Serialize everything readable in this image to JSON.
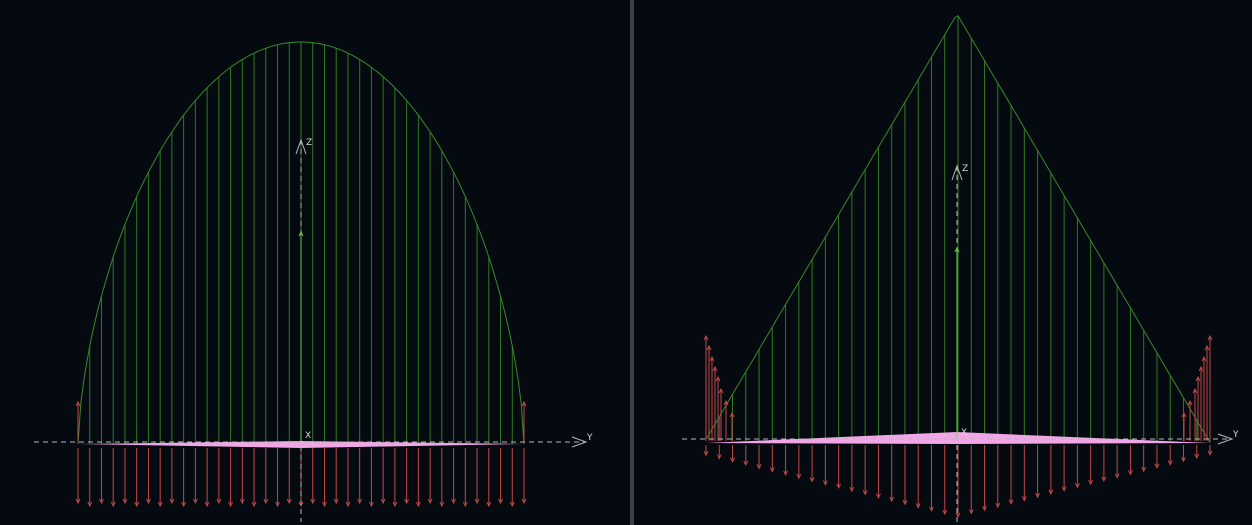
{
  "views": [
    {
      "id": "left",
      "axis_labels": {
        "z": "Z",
        "y": "Y",
        "x": "X"
      },
      "lift_distribution": "elliptical",
      "panel_count": 38,
      "colors": {
        "lift_curve": "#3a8a2a",
        "lift_lines": "#2f7a23",
        "total_lift_vector": "#6ad04a",
        "drag_vectors": "#c24848",
        "wing_surface": "#f2a6e8",
        "axis": "#b8b8b8"
      }
    },
    {
      "id": "right",
      "axis_labels": {
        "z": "Z",
        "y": "Y",
        "x": "X"
      },
      "lift_distribution": "triangular",
      "panel_count": 38,
      "colors": {
        "lift_curve": "#3a8a2a",
        "lift_lines": "#2f7a23",
        "total_lift_vector": "#6ad04a",
        "drag_vectors": "#c24848",
        "wing_surface": "#f2a6e8",
        "axis": "#b8b8b8"
      }
    }
  ]
}
